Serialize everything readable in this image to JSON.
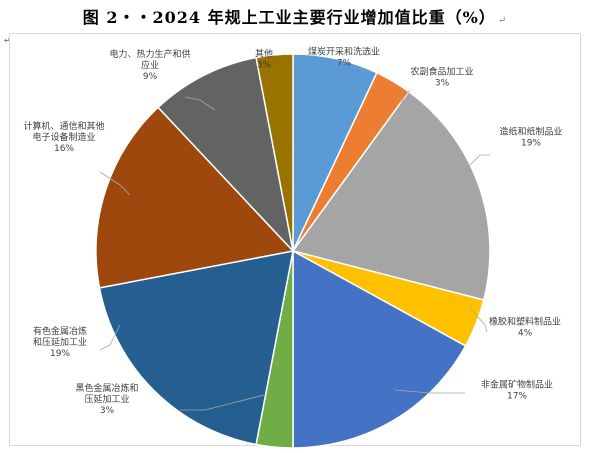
{
  "title": "图 2‧‧2024 年规上工业主要行业增加值比重（%）",
  "return_mark": "↵",
  "corner_mark": "↵",
  "chart_data": {
    "type": "pie",
    "title": "图 2‧‧2024 年规上工业主要行业增加值比重（%）",
    "unit": "%",
    "legend": "none",
    "slices": [
      {
        "label": "煤炭开采和洗选业",
        "display_label": [
          "煤炭开采和洗选业"
        ],
        "value": 7,
        "value_label": "7%",
        "color": "#5b9bd5"
      },
      {
        "label": "农副食品加工业",
        "display_label": [
          "农副食品加工业"
        ],
        "value": 3,
        "value_label": "3%",
        "color": "#ed7d31"
      },
      {
        "label": "造纸和纸制品业",
        "display_label": [
          "造纸和纸制品业"
        ],
        "value": 19,
        "value_label": "19%",
        "color": "#a5a5a5"
      },
      {
        "label": "橡胶和塑料制品业",
        "display_label": [
          "橡胶和塑料制品业"
        ],
        "value": 4,
        "value_label": "4%",
        "color": "#ffc000"
      },
      {
        "label": "非金属矿物制品业",
        "display_label": [
          "非金属矿物制品业"
        ],
        "value": 17,
        "value_label": "17%",
        "color": "#4472c4"
      },
      {
        "label": "黑色金属冶炼和压延加工业",
        "display_label": [
          "黑色金属冶炼和",
          "压延加工业"
        ],
        "value": 3,
        "value_label": "3%",
        "color": "#70ad47"
      },
      {
        "label": "有色金属冶炼和压延加工业",
        "display_label": [
          "有色金属冶炼",
          "和压延加工业"
        ],
        "value": 19,
        "value_label": "19%",
        "color": "#255e91"
      },
      {
        "label": "计算机、通信和其他电子设备制造业",
        "display_label": [
          "计算机、通信和其他",
          "电子设备制造业"
        ],
        "value": 16,
        "value_label": "16%",
        "color": "#9e480e"
      },
      {
        "label": "电力、热力生产和供应业",
        "display_label": [
          "电力、热力生产和供",
          "应业"
        ],
        "value": 9,
        "value_label": "9%",
        "color": "#636363"
      },
      {
        "label": "其他",
        "display_label": [
          "其他"
        ],
        "value": 3,
        "value_label": "3%",
        "color": "#997300"
      }
    ]
  }
}
